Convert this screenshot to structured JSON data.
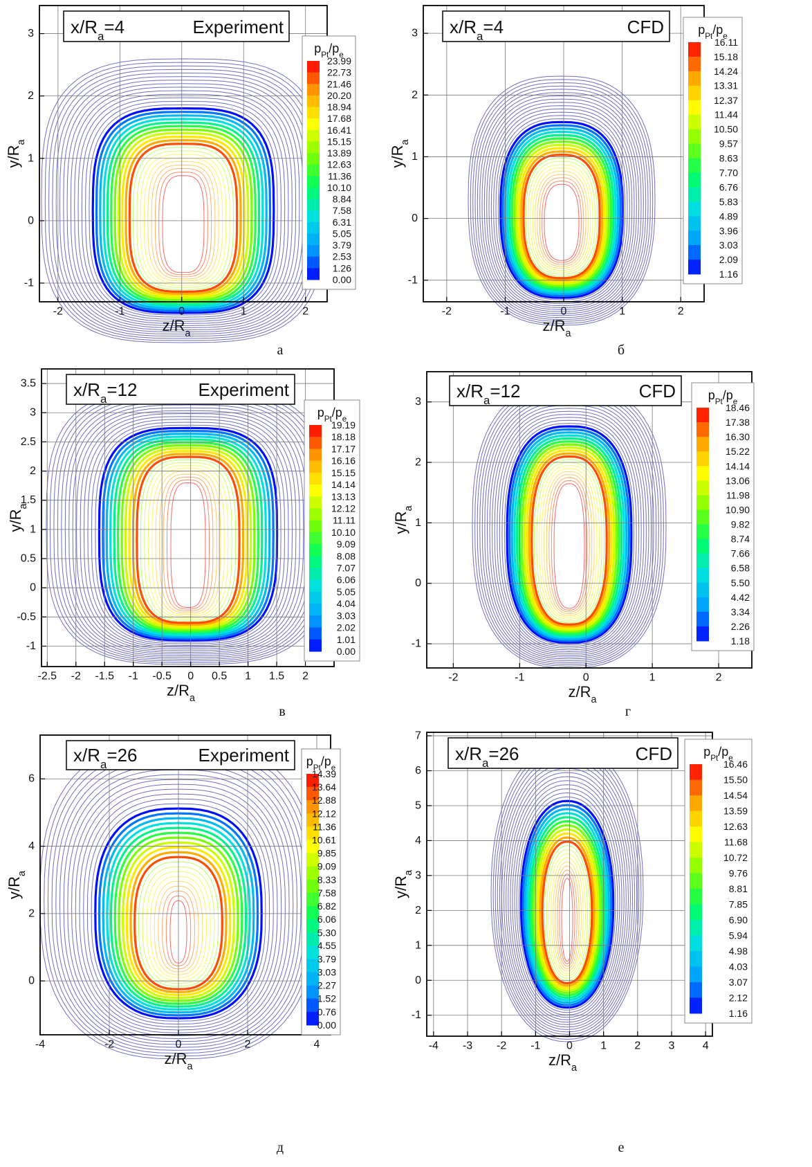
{
  "chart_data": [
    {
      "type": "contour",
      "title": [
        "x/R",
        "a",
        "=4"
      ],
      "label": "Experiment",
      "xlabel": [
        "z/R",
        "a"
      ],
      "ylabel": [
        "y/R",
        "a"
      ],
      "caption": "а",
      "xlim": [
        -2.3,
        2.35
      ],
      "xticks": [
        -2,
        -1,
        0,
        1,
        2
      ],
      "ylim": [
        -1.3,
        3.45
      ],
      "yticks": [
        -1,
        0,
        1,
        2,
        3
      ],
      "grid": true,
      "colorbar": {
        "title": [
          "p",
          "Pt",
          "/p",
          "e"
        ],
        "colors": [
          "#0000ff",
          "#00a0ff",
          "#00e0e0",
          "#00ff60",
          "#80ff00",
          "#ffff00",
          "#ffa000",
          "#ff0000"
        ],
        "ticks": [
          23.99,
          22.73,
          21.46,
          {
            "value": 20.2,
            "label": "20.20"
          },
          18.94,
          17.68,
          16.41,
          15.15,
          13.89,
          12.63,
          11.36,
          {
            "value": 10.1,
            "label": "10.10"
          },
          8.84,
          7.58,
          6.31,
          5.05,
          3.79,
          2.53,
          1.26,
          {
            "value": 0,
            "label": "0.00"
          }
        ]
      }
    },
    {
      "type": "contour",
      "title": [
        "x/R",
        "a",
        "=4"
      ],
      "label": "CFD",
      "xlabel": [
        "z/R",
        "a"
      ],
      "ylabel": [
        "y/R",
        "a"
      ],
      "caption": "б",
      "xlim": [
        -2.4,
        2.4
      ],
      "xticks": [
        -2,
        -1,
        0,
        1,
        2
      ],
      "ylim": [
        -1.35,
        3.45
      ],
      "yticks": [
        -1,
        0,
        1,
        2,
        3
      ],
      "grid": true,
      "colorbar": {
        "title": [
          "p",
          "Pt",
          "/p",
          "e"
        ],
        "colors": [
          "#0000ff",
          "#00a0ff",
          "#00e0e0",
          "#00ff60",
          "#80ff00",
          "#ffff00",
          "#ffa000",
          "#ff0000"
        ],
        "ticks": [
          16.11,
          15.18,
          14.24,
          13.31,
          12.37,
          11.44,
          {
            "value": 10.5,
            "label": "10.50"
          },
          9.57,
          8.63,
          {
            "value": 7.7,
            "label": "7.70"
          },
          6.76,
          5.83,
          4.89,
          3.96,
          3.03,
          2.09,
          1.16
        ]
      }
    },
    {
      "type": "contour",
      "title": [
        "x/R",
        "a",
        "=12"
      ],
      "label": "Experiment",
      "xlabel": [
        "z/R",
        "a"
      ],
      "ylabel": [
        "y/R",
        "a"
      ],
      "caption": "в",
      "xlim": [
        -2.6,
        2.5
      ],
      "xticks": [
        -2.5,
        -2,
        -1.5,
        -1,
        -0.5,
        0,
        0.5,
        1,
        1.5,
        2
      ],
      "ylim": [
        -1.35,
        3.75
      ],
      "yticks": [
        -1,
        -0.5,
        0,
        0.5,
        1,
        1.5,
        2,
        2.5,
        3,
        3.5
      ],
      "grid": true,
      "colorbar": {
        "title": [
          "p",
          "Pt",
          "/p",
          "e"
        ],
        "colors": [
          "#0000ff",
          "#00a0ff",
          "#00e0e0",
          "#00ff60",
          "#80ff00",
          "#ffff00",
          "#ffa000",
          "#ff0000"
        ],
        "ticks": [
          19.19,
          18.18,
          17.17,
          16.16,
          15.15,
          14.14,
          13.13,
          12.12,
          11.11,
          {
            "value": 10.1,
            "label": "10.10"
          },
          9.09,
          8.08,
          7.07,
          6.06,
          5.05,
          4.04,
          3.03,
          2.02,
          1.01,
          {
            "value": 0,
            "label": "0.00"
          }
        ]
      }
    },
    {
      "type": "contour",
      "title": [
        "x/R",
        "a",
        "=12"
      ],
      "label": "CFD",
      "xlabel": [
        "z/R",
        "a"
      ],
      "ylabel": [
        "y/R",
        "a"
      ],
      "caption": "г",
      "xlim": [
        -2.4,
        2.5
      ],
      "xticks": [
        -2,
        -1,
        0,
        1,
        2
      ],
      "ylim": [
        -1.4,
        3.5
      ],
      "yticks": [
        -1,
        0,
        1,
        2,
        3
      ],
      "grid": true,
      "colorbar": {
        "title": [
          "p",
          "Pt",
          "/p",
          "e"
        ],
        "colors": [
          "#0000ff",
          "#00a0ff",
          "#00e0e0",
          "#00ff60",
          "#80ff00",
          "#ffff00",
          "#ffa000",
          "#ff0000"
        ],
        "ticks": [
          18.46,
          17.38,
          {
            "value": 16.3,
            "label": "16.30"
          },
          15.22,
          14.14,
          13.06,
          11.98,
          {
            "value": 10.9,
            "label": "10.90"
          },
          9.82,
          8.74,
          7.66,
          6.58,
          {
            "value": 5.5,
            "label": "5.50"
          },
          4.42,
          3.34,
          2.26,
          1.18
        ]
      }
    },
    {
      "type": "contour",
      "title": [
        "x/R",
        "a",
        "=26"
      ],
      "label": "Experiment",
      "xlabel": [
        "z/R",
        "a"
      ],
      "ylabel": [
        "y/R",
        "a"
      ],
      "caption": "д",
      "xlim": [
        -4,
        4.4
      ],
      "xticks": [
        -4,
        -2,
        0,
        2,
        4
      ],
      "ylim": [
        -1.6,
        7.3
      ],
      "yticks": [
        0,
        2,
        4,
        6
      ],
      "grid": true,
      "colorbar": {
        "title": [
          "p",
          "Pt",
          "/p",
          "e"
        ],
        "colors": [
          "#0000ff",
          "#00a0ff",
          "#00e0e0",
          "#00ff60",
          "#80ff00",
          "#ffff00",
          "#ffa000",
          "#ff0000"
        ],
        "ticks": [
          14.39,
          13.64,
          12.88,
          12.12,
          11.36,
          10.61,
          9.85,
          9.09,
          8.33,
          7.58,
          6.82,
          6.06,
          {
            "value": 5.3,
            "label": "5.30"
          },
          4.55,
          3.79,
          3.03,
          2.27,
          1.52,
          0.76,
          {
            "value": 0,
            "label": "0.00"
          }
        ]
      }
    },
    {
      "type": "contour",
      "title": [
        "x/R",
        "a",
        "=26"
      ],
      "label": "CFD",
      "xlabel": [
        "z/R",
        "a"
      ],
      "ylabel": [
        "y/R",
        "a"
      ],
      "caption": "е",
      "xlim": [
        -4.2,
        4.2
      ],
      "xticks": [
        -4,
        -3,
        -2,
        -1,
        0,
        1,
        2,
        3,
        4
      ],
      "ylim": [
        -1.6,
        7.1
      ],
      "yticks": [
        -1,
        0,
        1,
        2,
        3,
        4,
        5,
        6,
        7
      ],
      "grid": true,
      "colorbar": {
        "title": [
          "p",
          "Pt",
          "/p",
          "e"
        ],
        "colors": [
          "#0000ff",
          "#00a0ff",
          "#00e0e0",
          "#00ff60",
          "#80ff00",
          "#ffff00",
          "#ffa000",
          "#ff0000"
        ],
        "ticks": [
          16.46,
          {
            "value": 15.5,
            "label": "15.50"
          },
          14.54,
          13.59,
          12.63,
          11.68,
          10.72,
          9.76,
          8.81,
          7.85,
          {
            "value": 6.9,
            "label": "6.90"
          },
          5.94,
          4.98,
          4.03,
          3.07,
          2.12,
          1.16
        ]
      }
    }
  ]
}
